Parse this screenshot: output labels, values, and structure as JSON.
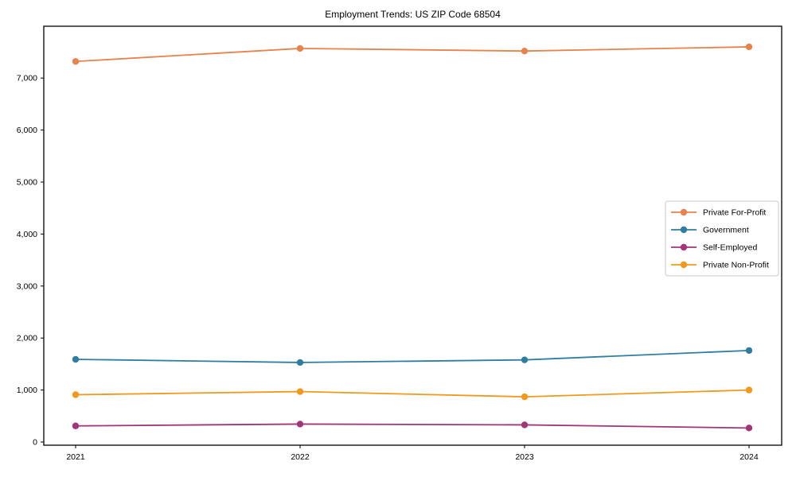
{
  "chart_data": {
    "type": "line",
    "title": "Employment Trends: US ZIP Code 68504",
    "x": [
      2021,
      2022,
      2023,
      2024
    ],
    "xtick_labels": [
      "2021",
      "2022",
      "2023",
      "2024"
    ],
    "yticks": [
      0,
      1000,
      2000,
      3000,
      4000,
      5000,
      6000,
      7000
    ],
    "ytick_labels": [
      "0",
      "1,000",
      "2,000",
      "3,000",
      "4,000",
      "5,000",
      "6,000",
      "7,000"
    ],
    "ylim": [
      0,
      8000
    ],
    "grid": false,
    "marker": "circle",
    "legend_position": "center-right",
    "series": [
      {
        "name": "Private For-Profit",
        "color": "#e8824c",
        "values": [
          7320,
          7570,
          7520,
          7600
        ]
      },
      {
        "name": "Government",
        "color": "#2f7ea1",
        "values": [
          1590,
          1530,
          1580,
          1760
        ]
      },
      {
        "name": "Self-Employed",
        "color": "#a23478",
        "values": [
          310,
          345,
          330,
          270
        ]
      },
      {
        "name": "Private Non-Profit",
        "color": "#f0991c",
        "values": [
          910,
          970,
          870,
          1000
        ]
      }
    ]
  }
}
